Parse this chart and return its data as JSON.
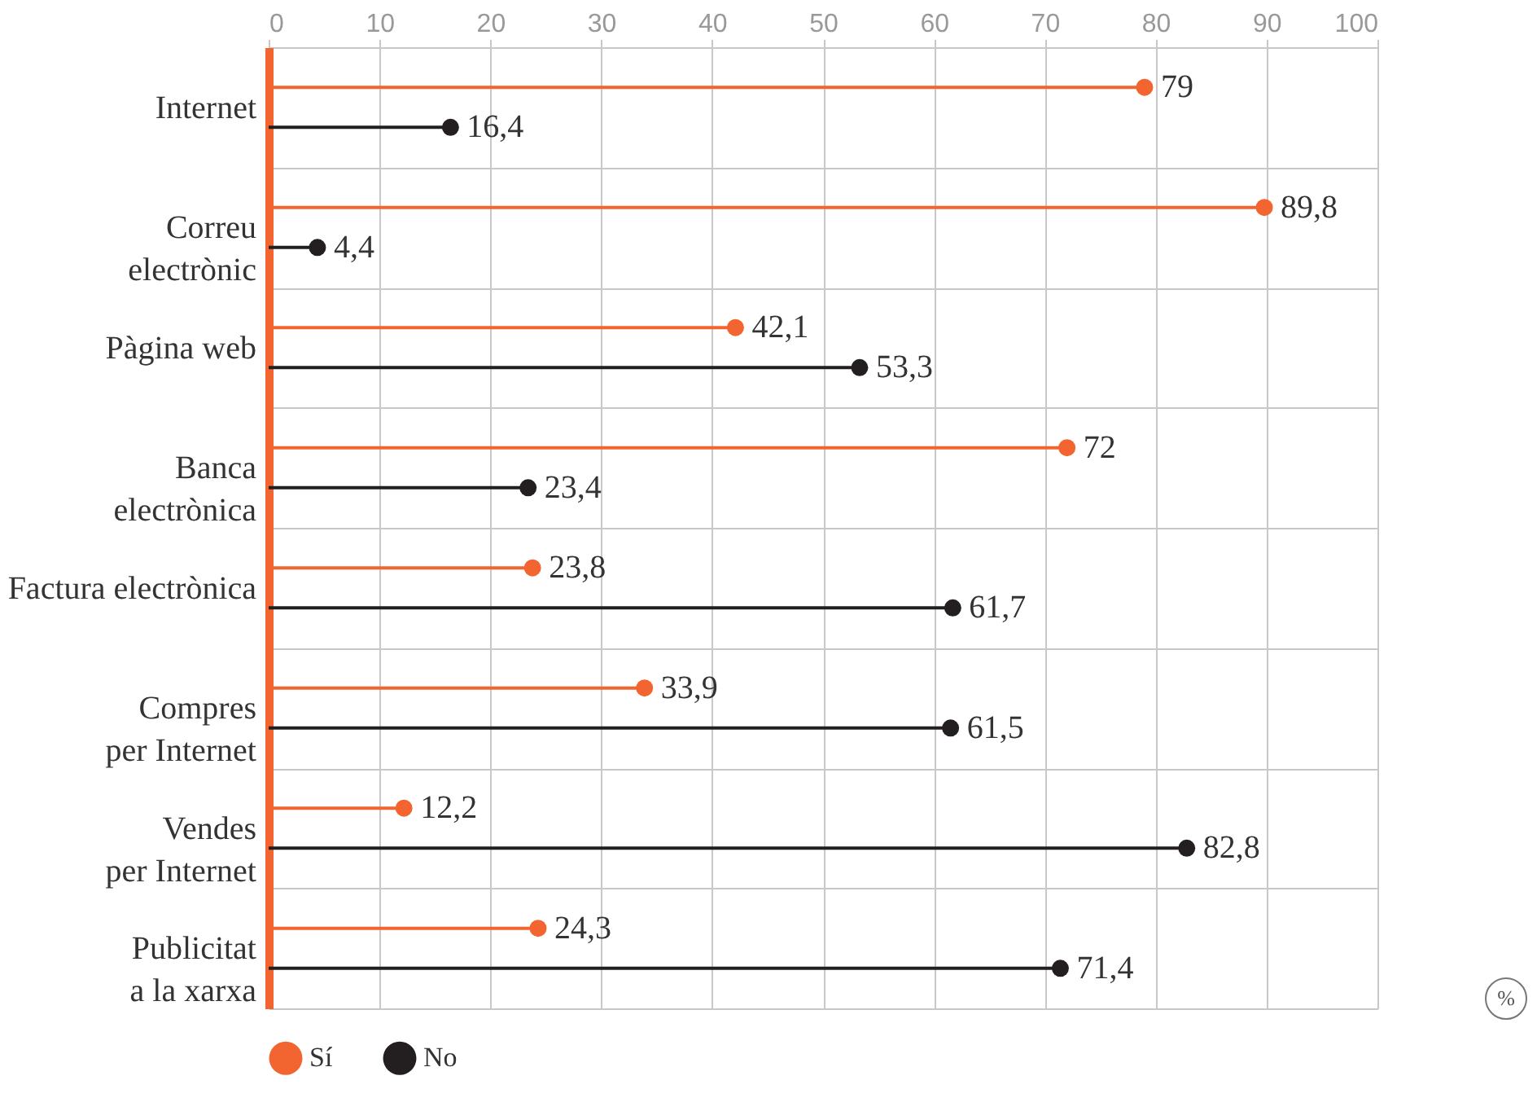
{
  "chart_data": {
    "type": "lollipop",
    "orientation": "horizontal",
    "categories": [
      "Internet",
      "Correu\nelectrònic",
      "Pàgina web",
      "Banca\nelectrònica",
      "Factura electrònica",
      "Compres\nper Internet",
      "Vendes\nper Internet",
      "Publicitat\na la xarxa"
    ],
    "series": [
      {
        "name": "Sí",
        "color": "#f26430",
        "values": [
          79,
          89.8,
          42.1,
          72,
          23.8,
          33.9,
          12.2,
          24.3
        ],
        "value_labels": [
          "79",
          "89,8",
          "42,1",
          "72",
          "23,8",
          "33,9",
          "12,2",
          "24,3"
        ]
      },
      {
        "name": "No",
        "color": "#231f20",
        "values": [
          16.4,
          4.4,
          53.3,
          23.4,
          61.7,
          61.5,
          82.8,
          71.4
        ],
        "value_labels": [
          "16,4",
          "4,4",
          "53,3",
          "23,4",
          "61,7",
          "61,5",
          "82,8",
          "71,4"
        ]
      }
    ],
    "xlim": [
      0,
      100
    ],
    "xticks": [
      0,
      10,
      20,
      30,
      40,
      50,
      60,
      70,
      80,
      90,
      100
    ],
    "grid": true,
    "legend": "bottom",
    "marker": "circle",
    "annotations": [
      "%"
    ]
  }
}
